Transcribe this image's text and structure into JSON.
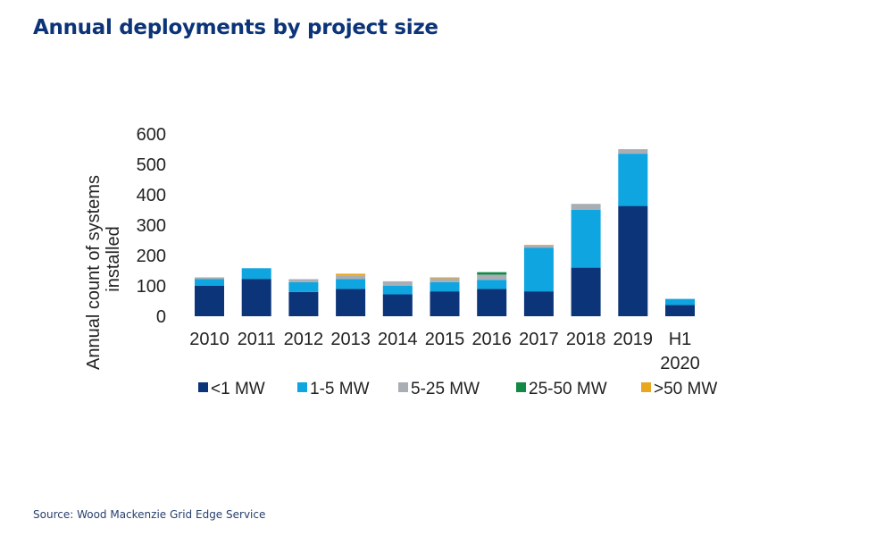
{
  "header": {
    "title": "Annual deployments by project size"
  },
  "footer": {
    "source": "Source: Wood Mackenzie Grid Edge Service"
  },
  "chart_data": {
    "type": "bar",
    "stacked": true,
    "title": "Annual deployments by project size",
    "xlabel": "",
    "ylabel": "Annual count of systems installed",
    "ylabel_lines": [
      "Annual count of systems",
      "installed"
    ],
    "ylim": [
      0,
      600
    ],
    "yticks": [
      0,
      100,
      200,
      300,
      400,
      500,
      600
    ],
    "grid": false,
    "legend_position": "bottom",
    "categories": [
      "2010",
      "2011",
      "2012",
      "2013",
      "2014",
      "2015",
      "2016",
      "2017",
      "2018",
      "2019",
      "H1 2020"
    ],
    "category_lines": [
      [
        "2010"
      ],
      [
        "2011"
      ],
      [
        "2012"
      ],
      [
        "2013"
      ],
      [
        "2014"
      ],
      [
        "2015"
      ],
      [
        "2016"
      ],
      [
        "2017"
      ],
      [
        "2018"
      ],
      [
        "2019"
      ],
      [
        "H1",
        "2020"
      ]
    ],
    "series": [
      {
        "name": "<1 MW",
        "color": "#0c3478",
        "values": [
          100,
          123,
          80,
          90,
          72,
          82,
          90,
          82,
          160,
          363,
          37
        ]
      },
      {
        "name": "1-5 MW",
        "color": "#0ea5e0",
        "values": [
          22,
          35,
          32,
          32,
          28,
          30,
          30,
          143,
          190,
          172,
          20
        ]
      },
      {
        "name": "5-25 MW",
        "color": "#a8aeb4",
        "values": [
          6,
          0,
          10,
          13,
          15,
          13,
          17,
          8,
          20,
          15,
          0
        ]
      },
      {
        "name": "25-50 MW",
        "color": "#128a44",
        "values": [
          0,
          0,
          0,
          0,
          0,
          0,
          8,
          0,
          0,
          0,
          0
        ]
      },
      {
        "name": ">50 MW",
        "color": "#e8a71e",
        "values": [
          0,
          0,
          0,
          5,
          0,
          3,
          0,
          2,
          0,
          0,
          0
        ]
      }
    ]
  }
}
